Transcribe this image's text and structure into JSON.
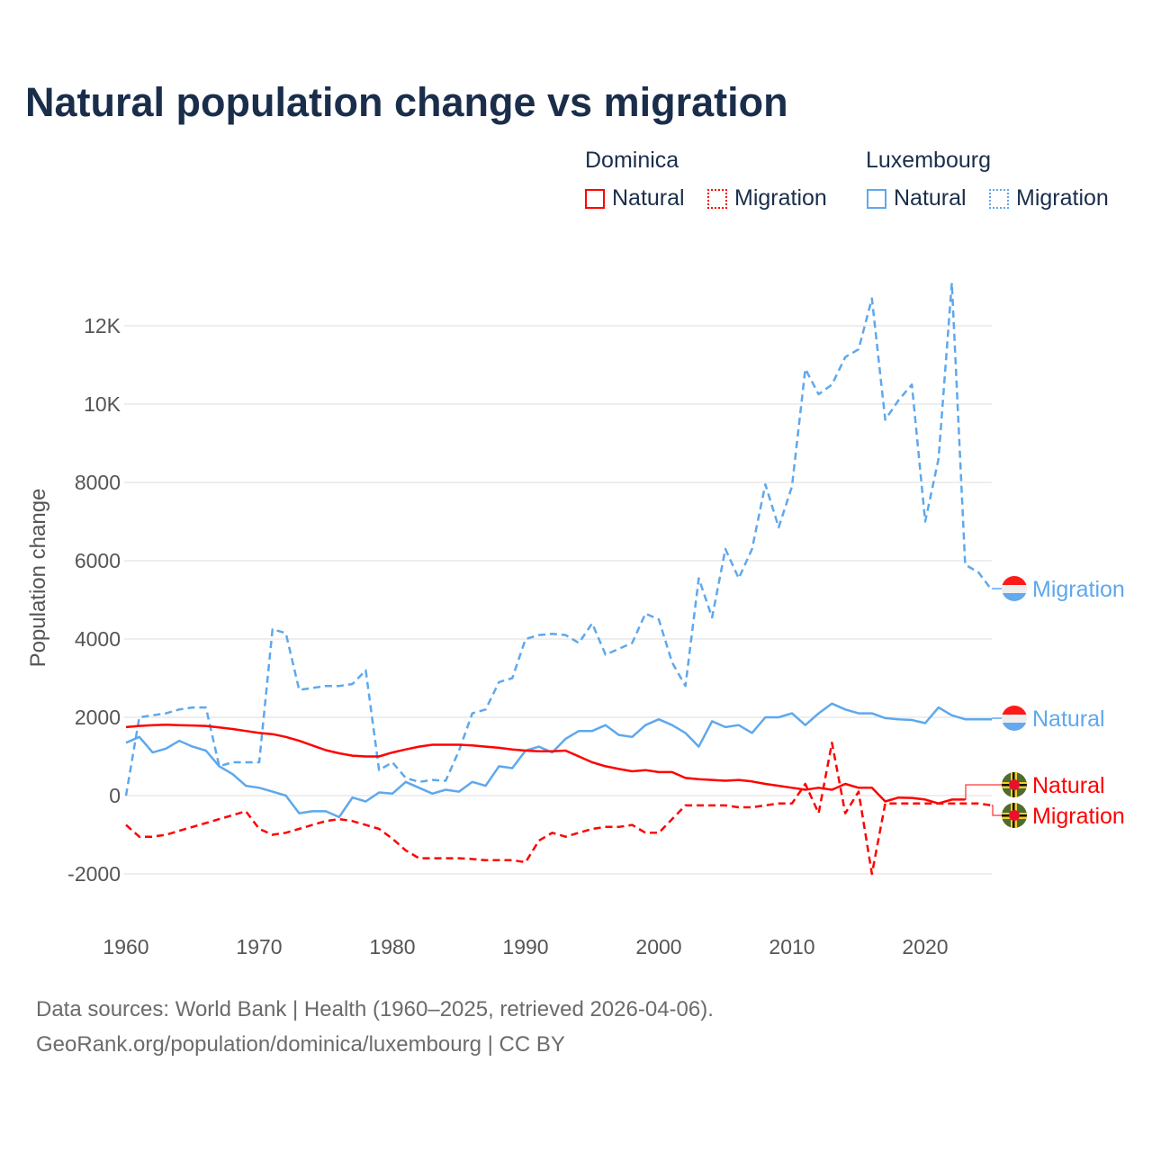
{
  "title": "Natural population change vs migration",
  "legend": {
    "groups": [
      {
        "name": "Dominica",
        "items": [
          "Natural",
          "Migration"
        ],
        "color": "#ff0000"
      },
      {
        "name": "Luxembourg",
        "items": [
          "Natural",
          "Migration"
        ],
        "color": "#5ea8ec"
      }
    ]
  },
  "footer": {
    "line1": "Data sources: World Bank | Health (1960–2025, retrieved 2026-04-06).",
    "line2": "GeoRank.org/population/dominica/luxembourg | CC BY"
  },
  "chart_data": {
    "type": "line",
    "title": "Natural population change vs migration",
    "xlabel": "",
    "ylabel": "Population change",
    "xlim": [
      1960,
      2025
    ],
    "ylim": [
      -2500,
      13500
    ],
    "x_ticks": [
      1960,
      1970,
      1980,
      1990,
      2000,
      2010,
      2020
    ],
    "x_tick_labels": [
      "1960",
      "1970",
      "1980",
      "1990",
      "2000",
      "2010",
      "2020"
    ],
    "y_ticks": [
      -2000,
      0,
      2000,
      4000,
      6000,
      8000,
      10000,
      12000
    ],
    "y_tick_labels": [
      "-2000",
      "0",
      "2000",
      "4000",
      "6000",
      "8000",
      "10K",
      "12K"
    ],
    "grid": true,
    "legend_position": "top-right",
    "series": [
      {
        "name": "Luxembourg Migration",
        "label": "Migration",
        "country": "Luxembourg",
        "color": "#5ea8ec",
        "dashed": true,
        "start_year": 1960,
        "values": [
          0,
          2000,
          2050,
          2100,
          2200,
          2250,
          2250,
          750,
          850,
          850,
          850,
          4250,
          4150,
          2700,
          2750,
          2800,
          2800,
          2850,
          3200,
          650,
          850,
          450,
          350,
          400,
          380,
          1150,
          2100,
          2200,
          2900,
          3000,
          4000,
          4100,
          4130,
          4100,
          3900,
          4400,
          3600,
          3750,
          3900,
          4650,
          4500,
          3400,
          2800,
          5550,
          4550,
          6300,
          5550,
          6300,
          7950,
          6850,
          7900,
          10900,
          10250,
          10500,
          11200,
          11400,
          12700,
          9600,
          10100,
          10500,
          7000,
          8600,
          13100,
          5900,
          5700,
          5250
        ]
      },
      {
        "name": "Luxembourg Natural",
        "label": "Natural",
        "country": "Luxembourg",
        "color": "#5ea8ec",
        "dashed": false,
        "start_year": 1960,
        "values": [
          1350,
          1500,
          1100,
          1200,
          1400,
          1250,
          1150,
          750,
          550,
          250,
          200,
          100,
          0,
          -450,
          -400,
          -400,
          -550,
          -50,
          -150,
          80,
          50,
          350,
          200,
          50,
          150,
          100,
          350,
          250,
          750,
          700,
          1150,
          1250,
          1100,
          1450,
          1650,
          1650,
          1800,
          1550,
          1500,
          1800,
          1950,
          1800,
          1600,
          1250,
          1900,
          1750,
          1800,
          1600,
          2000,
          2000,
          2100,
          1800,
          2100,
          2350,
          2200,
          2100,
          2100,
          1980,
          1950,
          1930,
          1850,
          2250,
          2050,
          1950,
          1950,
          1950
        ]
      },
      {
        "name": "Dominica Natural",
        "label": "Natural",
        "country": "Dominica",
        "color": "#ff0000",
        "dashed": false,
        "start_year": 1960,
        "values": [
          1750,
          1780,
          1800,
          1810,
          1800,
          1790,
          1780,
          1740,
          1700,
          1650,
          1600,
          1570,
          1500,
          1400,
          1280,
          1160,
          1080,
          1020,
          1000,
          1000,
          1100,
          1180,
          1250,
          1300,
          1300,
          1300,
          1280,
          1250,
          1220,
          1180,
          1150,
          1130,
          1130,
          1150,
          1000,
          850,
          750,
          680,
          620,
          650,
          600,
          600,
          450,
          420,
          400,
          380,
          400,
          360,
          300,
          250,
          200,
          150,
          200,
          150,
          300,
          200,
          200,
          -150,
          -50,
          -60,
          -100,
          -200,
          -100,
          -100
        ]
      },
      {
        "name": "Dominica Migration",
        "label": "Migration",
        "country": "Dominica",
        "color": "#ff0000",
        "dashed": true,
        "start_year": 1960,
        "values": [
          -750,
          -1050,
          -1050,
          -1000,
          -900,
          -800,
          -700,
          -600,
          -500,
          -400,
          -850,
          -1000,
          -950,
          -850,
          -750,
          -650,
          -600,
          -650,
          -750,
          -850,
          -1100,
          -1400,
          -1600,
          -1600,
          -1600,
          -1600,
          -1620,
          -1650,
          -1650,
          -1650,
          -1700,
          -1150,
          -950,
          -1050,
          -950,
          -850,
          -800,
          -800,
          -750,
          -950,
          -950,
          -600,
          -250,
          -250,
          -250,
          -250,
          -300,
          -300,
          -250,
          -200,
          -200,
          300,
          -450,
          1350,
          -450,
          100,
          -2000,
          -200,
          -200,
          -200,
          -200,
          -200,
          -200,
          -200,
          -200,
          -250
        ]
      }
    ]
  }
}
